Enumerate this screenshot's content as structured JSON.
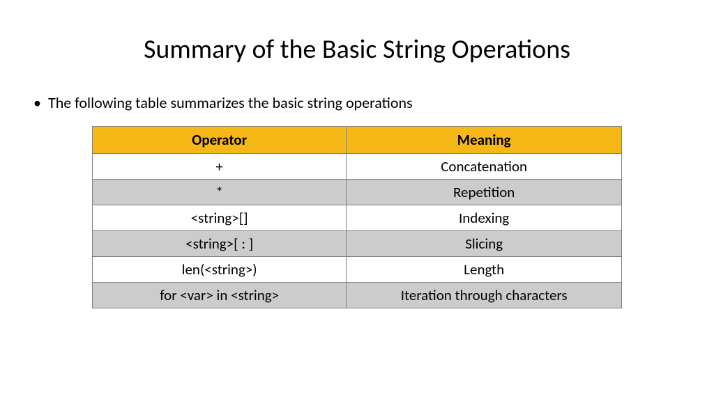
{
  "title": "Summary of the Basic String Operations",
  "bullet_text": "The following table summarizes the basic string operations",
  "table": {
    "header_bg": "#f6b817",
    "row_alt_bg": "#cccccc",
    "row_bg": "#ffffff",
    "border_color": "#808080",
    "columns": [
      "Operator",
      "Meaning"
    ],
    "rows": [
      {
        "operator": "+",
        "meaning": "Concatenation"
      },
      {
        "operator": "*",
        "meaning": "Repetition"
      },
      {
        "operator": "<string>[]",
        "meaning": "Indexing"
      },
      {
        "operator": "<string>[ : ]",
        "meaning": "Slicing"
      },
      {
        "operator": "len(<string>)",
        "meaning": "Length"
      },
      {
        "operator": "for <var> in <string>",
        "meaning": "Iteration through characters"
      }
    ]
  }
}
